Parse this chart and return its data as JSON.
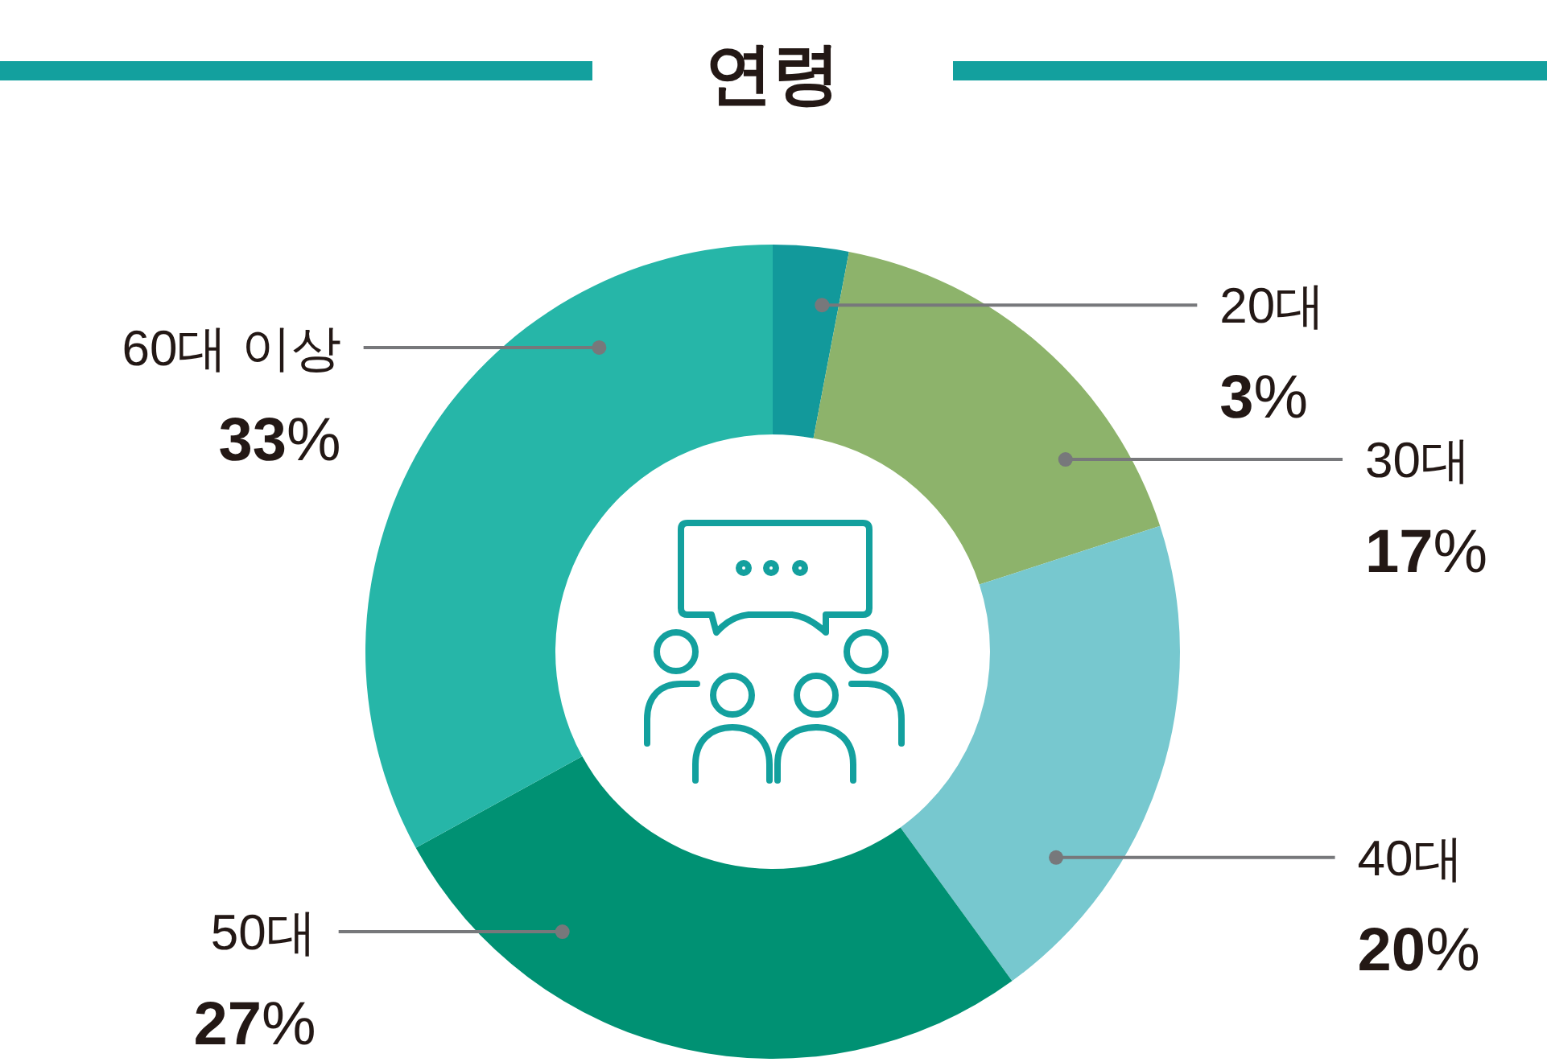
{
  "chart_data": {
    "type": "donut",
    "title": "연령",
    "categories": [
      "20대",
      "30대",
      "40대",
      "50대",
      "60대 이상"
    ],
    "values": [
      3,
      17,
      20,
      27,
      33
    ],
    "colors": [
      "#12999b",
      "#8db36b",
      "#77c8cf",
      "#009173",
      "#26b6a8"
    ],
    "value_labels": [
      "3%",
      "17%",
      "20%",
      "27%",
      "33%"
    ]
  }
}
